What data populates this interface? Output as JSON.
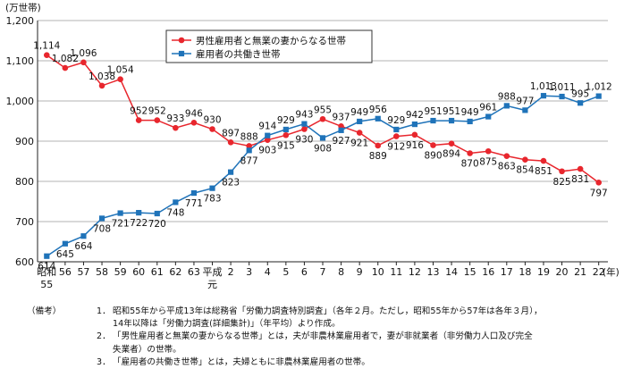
{
  "chart_data": {
    "type": "line",
    "ylabel": "(万世帯)",
    "xlabel": "(年)",
    "ylim": [
      600,
      1200
    ],
    "yticks": [
      "600",
      "700",
      "800",
      "900",
      "1,000",
      "1,100",
      "1,200"
    ],
    "x": [
      "昭和55",
      "56",
      "57",
      "58",
      "59",
      "60",
      "61",
      "62",
      "63",
      "平成元",
      "2",
      "3",
      "4",
      "5",
      "6",
      "7",
      "8",
      "9",
      "10",
      "11",
      "12",
      "13",
      "14",
      "15",
      "16",
      "17",
      "18",
      "19",
      "20",
      "21",
      "22"
    ],
    "grid": true,
    "legend_position": "top-center",
    "series": [
      {
        "name": "男性雇用者と無業の妻からなる世帯",
        "color": "#e8262d",
        "marker": "circle",
        "values": [
          1114,
          1082,
          1096,
          1038,
          1054,
          952,
          952,
          933,
          946,
          930,
          897,
          888,
          903,
          915,
          930,
          955,
          937,
          921,
          889,
          912,
          916,
          890,
          894,
          870,
          875,
          863,
          854,
          851,
          825,
          831,
          797
        ],
        "labels": [
          "1,114",
          "1,082",
          "1,096",
          "1,038",
          "1,054",
          "952",
          "952",
          "933",
          "946",
          "930",
          "897",
          "888",
          "903",
          "915",
          "930",
          "955",
          "937",
          "921",
          "889",
          "912",
          "916",
          "890",
          "894",
          "870",
          "875",
          "863",
          "854",
          "851",
          "825",
          "831",
          "797"
        ]
      },
      {
        "name": "雇用者の共働き世帯",
        "color": "#1f73b9",
        "marker": "square",
        "values": [
          614,
          645,
          664,
          708,
          721,
          722,
          720,
          748,
          771,
          783,
          823,
          877,
          914,
          929,
          943,
          908,
          927,
          949,
          956,
          929,
          942,
          951,
          951,
          949,
          961,
          988,
          977,
          1013,
          1011,
          995,
          1012
        ],
        "labels": [
          "614",
          "645",
          "664",
          "708",
          "721",
          "722",
          "720",
          "748",
          "771",
          "783",
          "823",
          "877",
          "914",
          "929",
          "943",
          "908",
          "927",
          "949",
          "956",
          "929",
          "942",
          "951",
          "951",
          "949",
          "961",
          "988",
          "977",
          "1,013",
          "1,011",
          "995",
          "1,012"
        ]
      }
    ]
  },
  "notes": {
    "heading": "（備考）",
    "items": [
      {
        "num": "1．",
        "lines": [
          "昭和55年から平成13年は総務省「労働力調査特別調査」（各年２月。ただし，昭和55年から57年は各年３月），",
          "14年以降は「労働力調査(詳細集計)」（年平均）より作成。"
        ]
      },
      {
        "num": "2．",
        "lines": [
          "「男性雇用者と無業の妻からなる世帯」とは，夫が非農林業雇用者で，妻が非就業者（非労働力人口及び完全",
          "失業者）の世帯。"
        ]
      },
      {
        "num": "3．",
        "lines": [
          "「雇用者の共働き世帯」とは，夫婦ともに非農林業雇用者の世帯。"
        ]
      }
    ]
  }
}
